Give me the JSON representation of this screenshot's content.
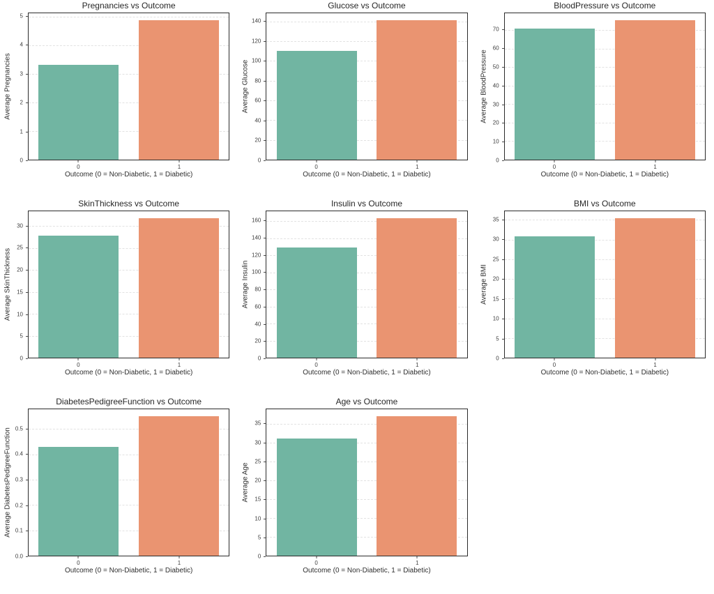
{
  "figure": {
    "background": "#ffffff",
    "grid_rows": 3,
    "grid_cols": 3,
    "palette": {
      "bar_non_diabetic": "#71b5a2",
      "bar_diabetic": "#ea9471",
      "grid_line": "#e2e2e2",
      "spine": "#2a2a2a",
      "text": "#2e2e2e",
      "tick_text": "#3d3d3d"
    }
  },
  "chart_data": [
    {
      "type": "bar",
      "title": "Pregnancies vs Outcome",
      "xlabel": "Outcome (0 = Non-Diabetic, 1 = Diabetic)",
      "ylabel": "Average Pregnancies",
      "categories": [
        "0",
        "1"
      ],
      "values": [
        3.3,
        4.87
      ],
      "ylim": [
        0,
        5.11
      ],
      "yticks": [
        0,
        1,
        2,
        3,
        4,
        5
      ],
      "ytick_labels": [
        "0",
        "1",
        "2",
        "3",
        "4",
        "5"
      ],
      "grid": "dashed-horizontal",
      "legend": "none"
    },
    {
      "type": "bar",
      "title": "Glucose vs Outcome",
      "xlabel": "Outcome (0 = Non-Diabetic, 1 = Diabetic)",
      "ylabel": "Average Glucose",
      "categories": [
        "0",
        "1"
      ],
      "values": [
        110.0,
        141.3
      ],
      "ylim": [
        0,
        148.4
      ],
      "yticks": [
        0,
        20,
        40,
        60,
        80,
        100,
        120,
        140
      ],
      "ytick_labels": [
        "0",
        "20",
        "40",
        "60",
        "80",
        "100",
        "120",
        "140"
      ],
      "grid": "dashed-horizontal",
      "legend": "none"
    },
    {
      "type": "bar",
      "title": "BloodPressure vs Outcome",
      "xlabel": "Outcome (0 = Non-Diabetic, 1 = Diabetic)",
      "ylabel": "Average BloodPressure",
      "categories": [
        "0",
        "1"
      ],
      "values": [
        70.9,
        75.3
      ],
      "ylim": [
        0,
        79.1
      ],
      "yticks": [
        0,
        10,
        20,
        30,
        40,
        50,
        60,
        70
      ],
      "ytick_labels": [
        "0",
        "10",
        "20",
        "30",
        "40",
        "50",
        "60",
        "70"
      ],
      "grid": "dashed-horizontal",
      "legend": "none"
    },
    {
      "type": "bar",
      "title": "SkinThickness vs Outcome",
      "xlabel": "Outcome (0 = Non-Diabetic, 1 = Diabetic)",
      "ylabel": "Average SkinThickness",
      "categories": [
        "0",
        "1"
      ],
      "values": [
        27.8,
        31.8
      ],
      "ylim": [
        0,
        33.4
      ],
      "yticks": [
        0,
        5,
        10,
        15,
        20,
        25,
        30
      ],
      "ytick_labels": [
        "0",
        "5",
        "10",
        "15",
        "20",
        "25",
        "30"
      ],
      "grid": "dashed-horizontal",
      "legend": "none"
    },
    {
      "type": "bar",
      "title": "Insulin vs Outcome",
      "xlabel": "Outcome (0 = Non-Diabetic, 1 = Diabetic)",
      "ylabel": "Average Insulin",
      "categories": [
        "0",
        "1"
      ],
      "values": [
        128.8,
        163.4
      ],
      "ylim": [
        0,
        171.6
      ],
      "yticks": [
        0,
        20,
        40,
        60,
        80,
        100,
        120,
        140,
        160
      ],
      "ytick_labels": [
        "0",
        "20",
        "40",
        "60",
        "80",
        "100",
        "120",
        "140",
        "160"
      ],
      "grid": "dashed-horizontal",
      "legend": "none"
    },
    {
      "type": "bar",
      "title": "BMI vs Outcome",
      "xlabel": "Outcome (0 = Non-Diabetic, 1 = Diabetic)",
      "ylabel": "Average BMI",
      "categories": [
        "0",
        "1"
      ],
      "values": [
        30.9,
        35.4
      ],
      "ylim": [
        0,
        37.2
      ],
      "yticks": [
        0,
        5,
        10,
        15,
        20,
        25,
        30,
        35
      ],
      "ytick_labels": [
        "0",
        "5",
        "10",
        "15",
        "20",
        "25",
        "30",
        "35"
      ],
      "grid": "dashed-horizontal",
      "legend": "none"
    },
    {
      "type": "bar",
      "title": "DiabetesPedigreeFunction vs Outcome",
      "xlabel": "Outcome (0 = Non-Diabetic, 1 = Diabetic)",
      "ylabel": "Average DiabetesPedigreeFunction",
      "categories": [
        "0",
        "1"
      ],
      "values": [
        0.43,
        0.55
      ],
      "ylim": [
        0,
        0.578
      ],
      "yticks": [
        0.0,
        0.1,
        0.2,
        0.3,
        0.4,
        0.5
      ],
      "ytick_labels": [
        "0.0",
        "0.1",
        "0.2",
        "0.3",
        "0.4",
        "0.5"
      ],
      "grid": "dashed-horizontal",
      "legend": "none"
    },
    {
      "type": "bar",
      "title": "Age vs Outcome",
      "xlabel": "Outcome (0 = Non-Diabetic, 1 = Diabetic)",
      "ylabel": "Average Age",
      "categories": [
        "0",
        "1"
      ],
      "values": [
        31.2,
        37.1
      ],
      "ylim": [
        0,
        38.9
      ],
      "yticks": [
        0,
        5,
        10,
        15,
        20,
        25,
        30,
        35
      ],
      "ytick_labels": [
        "0",
        "5",
        "10",
        "15",
        "20",
        "25",
        "30",
        "35"
      ],
      "grid": "dashed-horizontal",
      "legend": "none"
    }
  ]
}
